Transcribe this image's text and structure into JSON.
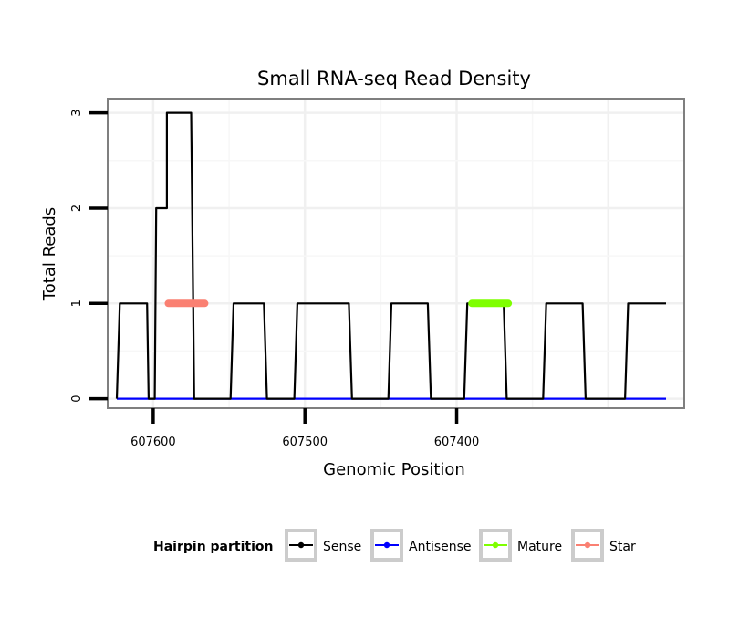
{
  "chart_data": {
    "type": "line",
    "title": "Small RNA-seq Read Density",
    "xlabel": "Genomic Position",
    "ylabel": "Total Reads",
    "x_reversed": true,
    "xlim": [
      607630,
      607250
    ],
    "ylim": [
      -0.1,
      3.15
    ],
    "x_ticks": [
      607600,
      607500,
      607400
    ],
    "x_tick_labels": [
      "607600",
      "607500",
      "607400"
    ],
    "y_ticks": [
      0,
      1,
      2,
      3
    ],
    "y_tick_labels": [
      "0",
      "1",
      "2",
      "3"
    ],
    "grid": true,
    "legend": {
      "title": "Hairpin partition",
      "position": "bottom",
      "entries": [
        {
          "label": "Sense",
          "color": "#000000"
        },
        {
          "label": "Antisense",
          "color": "#0000ff"
        },
        {
          "label": "Mature",
          "color": "#7fff00"
        },
        {
          "label": "Star",
          "color": "#fa8072"
        }
      ]
    },
    "series": [
      {
        "name": "Sense",
        "color": "#000000",
        "x": [
          607624,
          607622,
          607604,
          607603,
          607599,
          607598,
          607596,
          607596,
          607591,
          607591,
          607575,
          607573,
          607549,
          607547,
          607527,
          607525,
          607507,
          607505,
          607471,
          607469,
          607445,
          607443,
          607419,
          607417,
          607395,
          607393,
          607369,
          607367,
          607343,
          607341,
          607317,
          607315,
          607289,
          607287,
          607262
        ],
        "y": [
          0,
          1,
          1,
          0,
          0,
          2,
          2,
          2,
          2,
          3,
          3,
          0,
          0,
          1,
          1,
          0,
          0,
          1,
          1,
          0,
          0,
          1,
          1,
          0,
          0,
          1,
          1,
          0,
          0,
          1,
          1,
          0,
          0,
          1,
          1
        ]
      },
      {
        "name": "Antisense",
        "color": "#0000ff",
        "x": [
          607624,
          607262
        ],
        "y": [
          0,
          0
        ]
      },
      {
        "name": "Mature",
        "color": "#7fff00",
        "x": [
          607390,
          607366
        ],
        "y": [
          1,
          1
        ]
      },
      {
        "name": "Star",
        "color": "#fa8072",
        "x": [
          607590,
          607566
        ],
        "y": [
          1,
          1
        ]
      }
    ]
  }
}
